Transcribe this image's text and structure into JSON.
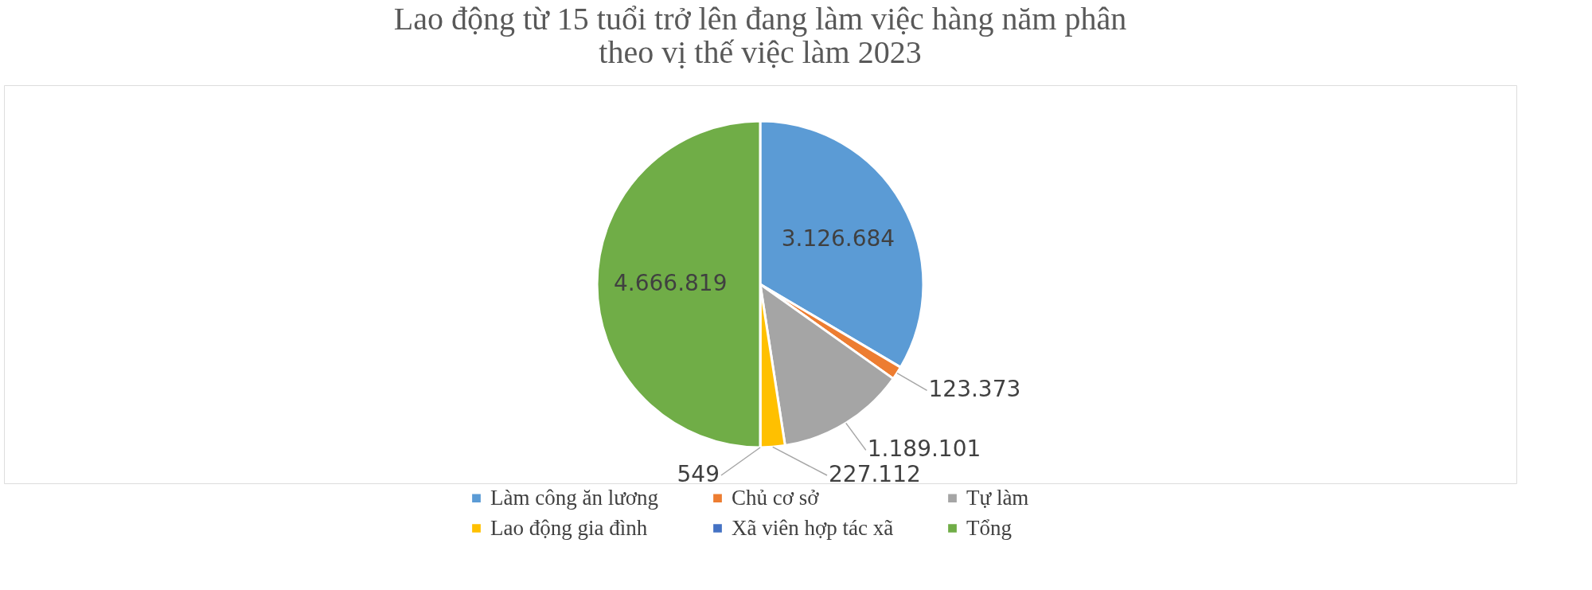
{
  "chart_data": {
    "type": "pie",
    "title": [
      "Lao động từ 15 tuổi trở lên đang làm việc hàng năm phân",
      "theo vị thế việc làm 2023"
    ],
    "categories": [
      "Làm công ăn lương",
      "Chủ cơ sở",
      "Tự làm",
      "Lao động gia đình",
      "Xã viên hợp tác xã",
      "Tổng"
    ],
    "values": [
      3126684,
      123373,
      1189101,
      227112,
      549,
      4666819
    ],
    "value_labels": [
      "3.126.684",
      "123.373",
      "1.189.101",
      "227.112",
      "549",
      "4.666.819"
    ],
    "colors": [
      "#5b9bd5",
      "#ed7d31",
      "#a5a5a5",
      "#ffc000",
      "#4472c4",
      "#70ad47"
    ],
    "legend": "bottom"
  }
}
